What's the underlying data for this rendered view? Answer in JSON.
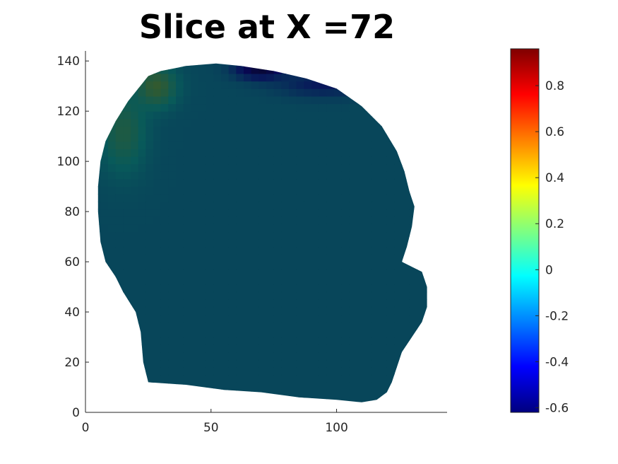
{
  "chart_data": {
    "type": "heatmap",
    "title": "Slice at X =72",
    "xlabel": "",
    "ylabel": "",
    "xlim": [
      0,
      144
    ],
    "ylim": [
      0,
      144
    ],
    "x_ticks": [
      0,
      50,
      100
    ],
    "x_tick_labels": [
      "0",
      "50",
      "100"
    ],
    "y_ticks": [
      0,
      20,
      40,
      60,
      80,
      100,
      120,
      140
    ],
    "y_tick_labels": [
      "0",
      "20",
      "40",
      "60",
      "80",
      "100",
      "120",
      "140"
    ],
    "grid": false,
    "colormap": "jet",
    "colorbar": {
      "range": [
        -0.62,
        0.96
      ],
      "ticks": [
        -0.6,
        -0.4,
        -0.2,
        0,
        0.2,
        0.4,
        0.6,
        0.8
      ],
      "tick_labels": [
        "-0.6",
        "-0.4",
        "-0.2",
        "0",
        "0.2",
        "0.4",
        "0.6",
        "0.8"
      ],
      "placement": "right"
    },
    "background_value": 0,
    "region_outline": [
      [
        25,
        134
      ],
      [
        30,
        136
      ],
      [
        40,
        138
      ],
      [
        52,
        139
      ],
      [
        62,
        138
      ],
      [
        75,
        136
      ],
      [
        88,
        133
      ],
      [
        100,
        129
      ],
      [
        110,
        122
      ],
      [
        118,
        114
      ],
      [
        124,
        104
      ],
      [
        127,
        96
      ],
      [
        129,
        88
      ],
      [
        131,
        82
      ],
      [
        130,
        74
      ],
      [
        128,
        66
      ],
      [
        126,
        60
      ],
      [
        134,
        56
      ],
      [
        136,
        50
      ],
      [
        136,
        42
      ],
      [
        134,
        36
      ],
      [
        130,
        30
      ],
      [
        126,
        24
      ],
      [
        124,
        18
      ],
      [
        122,
        12
      ],
      [
        120,
        8
      ],
      [
        116,
        5
      ],
      [
        110,
        4
      ],
      [
        100,
        5
      ],
      [
        85,
        6
      ],
      [
        70,
        8
      ],
      [
        55,
        9
      ],
      [
        40,
        11
      ],
      [
        25,
        12
      ],
      [
        23,
        20
      ],
      [
        22,
        32
      ],
      [
        20,
        40
      ],
      [
        15,
        48
      ],
      [
        12,
        54
      ],
      [
        8,
        60
      ],
      [
        6,
        68
      ],
      [
        5,
        80
      ],
      [
        5,
        90
      ],
      [
        6,
        100
      ],
      [
        8,
        108
      ],
      [
        12,
        116
      ],
      [
        17,
        124
      ]
    ],
    "inside_value": -0.12,
    "hotspots": [
      {
        "x": 70,
        "y": 137,
        "value": -0.6,
        "spread_x": 10,
        "spread_y": 4
      },
      {
        "x": 95,
        "y": 131,
        "value": -0.35,
        "spread_x": 18,
        "spread_y": 5
      },
      {
        "x": 28,
        "y": 130,
        "value": 0.18,
        "spread_x": 8,
        "spread_y": 8
      },
      {
        "x": 15,
        "y": 112,
        "value": 0.08,
        "spread_x": 9,
        "spread_y": 16
      }
    ]
  }
}
